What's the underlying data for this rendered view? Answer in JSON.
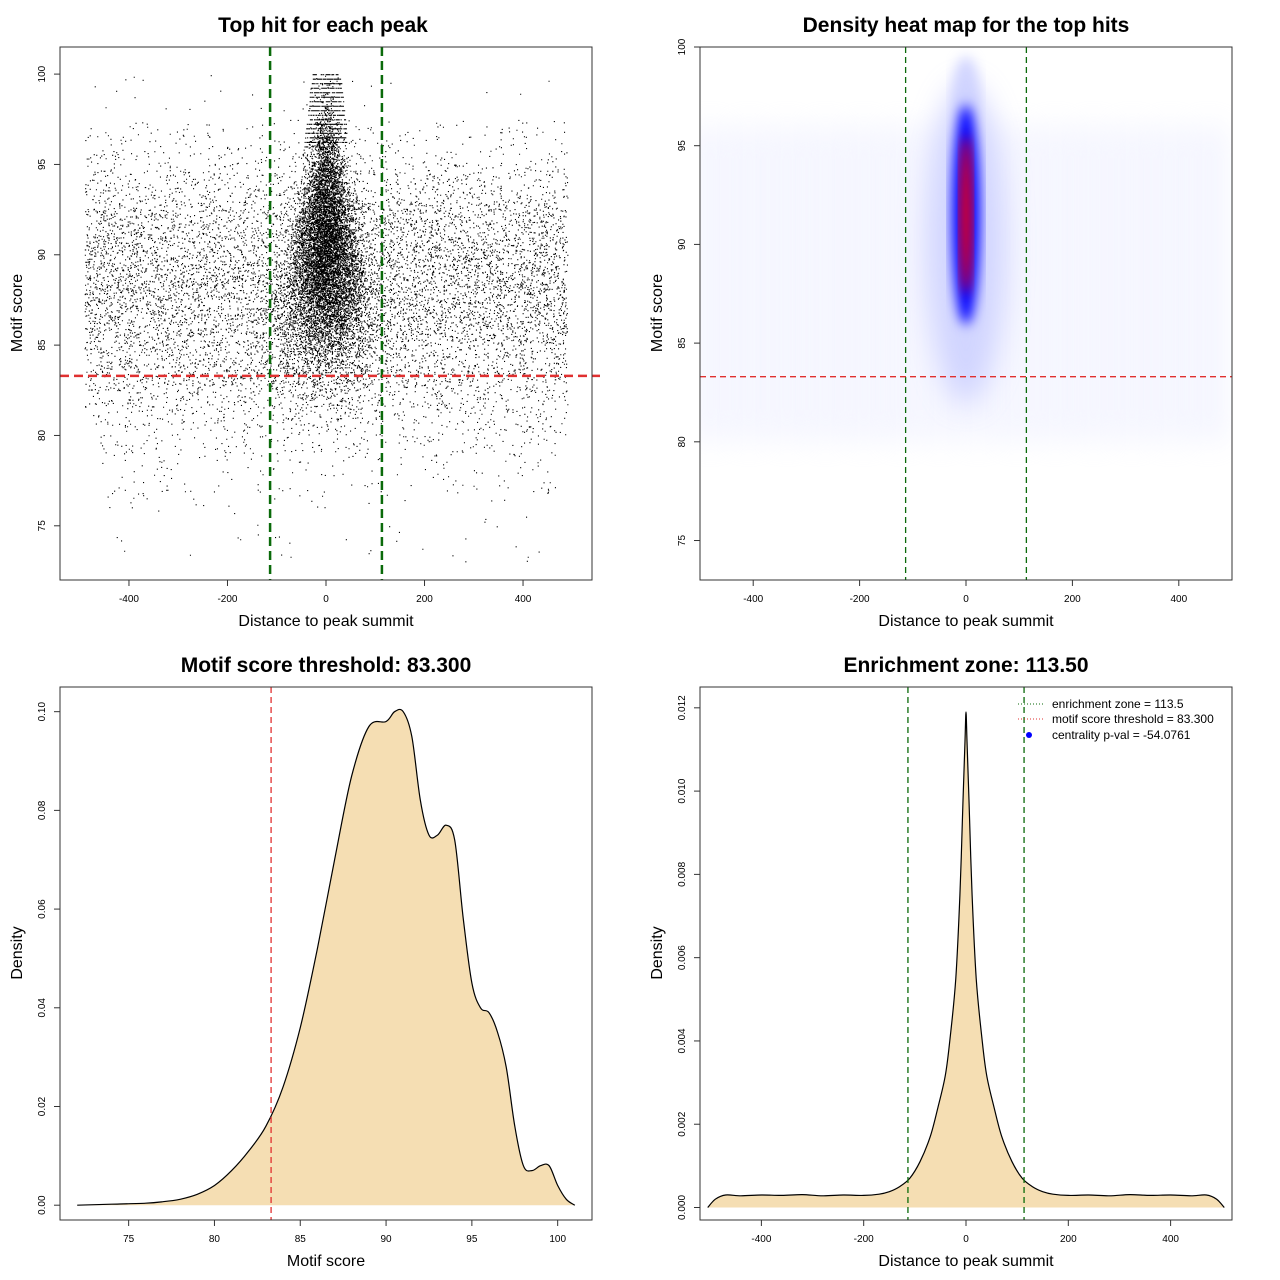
{
  "colors": {
    "threshold_line": "#e03030",
    "zone_line": "#0a6a0a",
    "density_fill": "#f5deb3",
    "heat_low": "#ffffff",
    "heat_mid": "#0000ff",
    "heat_high": "#ff0000",
    "points": "#000000",
    "legend_dot": "#0000ff"
  },
  "chart_data": [
    {
      "type": "scatter",
      "title": "Top hit for each peak",
      "xlabel": "Distance to peak summit",
      "ylabel": "Motif score",
      "xlim": [
        -540,
        540
      ],
      "ylim": [
        72,
        101.5
      ],
      "xticks": [
        -400,
        -200,
        0,
        200,
        400
      ],
      "yticks": [
        75,
        80,
        85,
        90,
        95,
        100
      ],
      "threshold": 83.3,
      "zone": [
        -113.5,
        113.5
      ],
      "grid": false,
      "description_of_points": "approx. 40000 top hits; dense central column between -100 and 100, uniform background between -490 and 490 concentrated in scores 82-96"
    },
    {
      "type": "heatmap",
      "title": "Density heat map for the top hits",
      "xlabel": "Distance to peak summit",
      "ylabel": "Motif score",
      "xlim": [
        -500,
        500
      ],
      "ylim": [
        73,
        100
      ],
      "xticks": [
        -400,
        -200,
        0,
        200,
        400
      ],
      "yticks": [
        75,
        80,
        85,
        90,
        95,
        100
      ],
      "threshold": 83.3,
      "zone": [
        -113.5,
        113.5
      ],
      "hotspot": {
        "x": 0,
        "y_range": [
          88,
          96
        ],
        "peak_y": 91.5
      }
    },
    {
      "type": "area",
      "title": "Motif score threshold: 83.300",
      "xlabel": "Motif score",
      "ylabel": "Density",
      "xlim": [
        71,
        102
      ],
      "ylim": [
        -0.003,
        0.105
      ],
      "xticks": [
        75,
        80,
        85,
        90,
        95,
        100
      ],
      "yticks": [
        0.0,
        0.02,
        0.04,
        0.06,
        0.08,
        0.1
      ],
      "ytick_labels": [
        "0.00",
        "0.02",
        "0.04",
        "0.06",
        "0.08",
        "0.10"
      ],
      "threshold": 83.3,
      "x": [
        72,
        74,
        76,
        77,
        78,
        79,
        80,
        81,
        82,
        83,
        84,
        85,
        86,
        87,
        88,
        89,
        90,
        90.5,
        91,
        91.5,
        92,
        92.5,
        93,
        93.5,
        94,
        94.5,
        95,
        95.5,
        96,
        96.5,
        97,
        97.5,
        98,
        98.5,
        99,
        99.5,
        100,
        100.5,
        101
      ],
      "y": [
        0.0,
        0.0002,
        0.0004,
        0.0007,
        0.0012,
        0.0022,
        0.004,
        0.007,
        0.011,
        0.016,
        0.024,
        0.036,
        0.052,
        0.07,
        0.087,
        0.097,
        0.098,
        0.1,
        0.1,
        0.095,
        0.082,
        0.075,
        0.075,
        0.077,
        0.074,
        0.058,
        0.045,
        0.04,
        0.039,
        0.035,
        0.028,
        0.016,
        0.008,
        0.007,
        0.008,
        0.008,
        0.004,
        0.0012,
        0.0
      ]
    },
    {
      "type": "area",
      "title": "Enrichment zone: 113.50",
      "xlabel": "Distance to peak summit",
      "ylabel": "Density",
      "xlim": [
        -520,
        520
      ],
      "ylim": [
        -0.0003,
        0.0125
      ],
      "xticks": [
        -400,
        -200,
        0,
        200,
        400
      ],
      "yticks": [
        0.0,
        0.002,
        0.004,
        0.006,
        0.008,
        0.01,
        0.012
      ],
      "ytick_labels": [
        "0.000",
        "0.002",
        "0.004",
        "0.006",
        "0.008",
        "0.010",
        "0.012"
      ],
      "zone": [
        -113.5,
        113.5
      ],
      "x": [
        -505,
        -490,
        -470,
        -440,
        -400,
        -360,
        -320,
        -280,
        -240,
        -200,
        -170,
        -150,
        -130,
        -110,
        -90,
        -70,
        -55,
        -40,
        -30,
        -20,
        -12,
        -6,
        -2,
        0,
        2,
        6,
        12,
        20,
        30,
        40,
        55,
        70,
        90,
        110,
        130,
        150,
        170,
        200,
        240,
        280,
        320,
        360,
        400,
        440,
        470,
        490,
        505
      ],
      "y": [
        0.0,
        0.0002,
        0.0003,
        0.00028,
        0.0003,
        0.00029,
        0.00031,
        0.00028,
        0.0003,
        0.00029,
        0.00032,
        0.00038,
        0.0005,
        0.0007,
        0.0011,
        0.0017,
        0.0024,
        0.0032,
        0.0042,
        0.0055,
        0.0075,
        0.0097,
        0.0112,
        0.0119,
        0.0112,
        0.0097,
        0.0075,
        0.0055,
        0.0042,
        0.0032,
        0.0024,
        0.0017,
        0.0011,
        0.0007,
        0.0005,
        0.00038,
        0.00032,
        0.00029,
        0.0003,
        0.00028,
        0.00031,
        0.00029,
        0.0003,
        0.00028,
        0.0003,
        0.0002,
        0.0
      ],
      "legend": {
        "position": "top-right",
        "entries": [
          {
            "label": "enrichment zone = 113.5",
            "kind": "dotted-line",
            "color": "#0a6a0a"
          },
          {
            "label": "motif score threshold = 83.300",
            "kind": "dotted-line",
            "color": "#e03030"
          },
          {
            "label": "centrality p-val = -54.0761",
            "kind": "dot",
            "color": "#0000ff"
          }
        ]
      }
    }
  ]
}
